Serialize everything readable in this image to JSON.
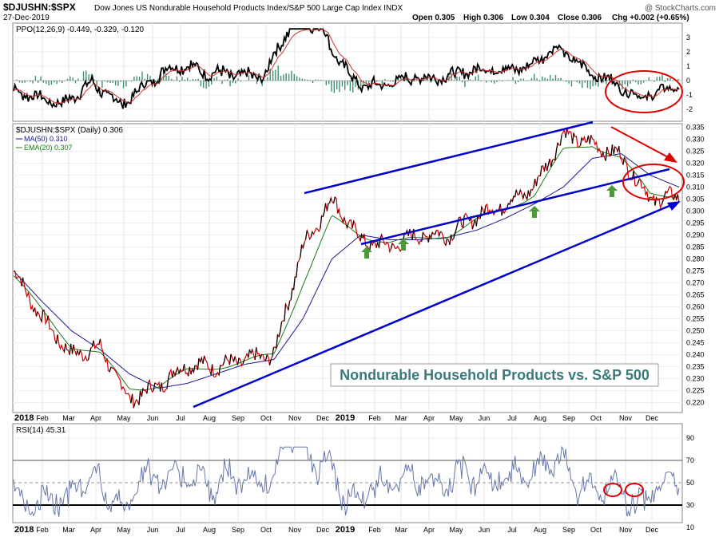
{
  "header": {
    "symbol": "$DJUSHN:$SPX",
    "description": "Dow Jones US Nondurable Household Products Index/S&P 500 Large Cap Index INDX",
    "watermark": "@ StockCharts.com",
    "date": "27-Dec-2019",
    "open": "Open 0.305",
    "high": "High 0.306",
    "low": "Low 0.304",
    "close": "Close 0.306",
    "chg": "Chg +0.002 (+0.65%)"
  },
  "ppo_panel": {
    "label": "PPO(12,26,9) -0.449, -0.329, -0.120",
    "ticks": [
      "3",
      "2",
      "1",
      "0",
      "-1",
      "-2"
    ]
  },
  "price_panel": {
    "label": "$DJUSHN:$SPX (Daily) 0.306",
    "ma_label": "MA(50) 0.310",
    "ema_label": "EMA(20) 0.307",
    "annotation": "Nondurable Household Products vs. S&P 500",
    "ticks": [
      "0.335",
      "0.330",
      "0.325",
      "0.320",
      "0.315",
      "0.310",
      "0.305",
      "0.300",
      "0.295",
      "0.290",
      "0.285",
      "0.280",
      "0.275",
      "0.270",
      "0.265",
      "0.260",
      "0.255",
      "0.250",
      "0.245",
      "0.240",
      "0.235",
      "0.230",
      "0.225",
      "0.220"
    ]
  },
  "rsi_panel": {
    "label": "RSI(14) 45.31",
    "ticks": [
      "90",
      "70",
      "50",
      "30",
      "10"
    ]
  },
  "x_axis": [
    "2018",
    "Feb",
    "Mar",
    "Apr",
    "May",
    "Jun",
    "Jul",
    "Aug",
    "Sep",
    "Oct",
    "Nov",
    "Dec",
    "2019",
    "Feb",
    "Mar",
    "Apr",
    "May",
    "Jun",
    "Jul",
    "Aug",
    "Sep",
    "Oct",
    "Nov",
    "Dec"
  ],
  "colors": {
    "price": "#cc0000",
    "ma50": "#1a1a8c",
    "ema20": "#1a7a1a",
    "trendline": "#0000cc",
    "arrow_green": "#4a9a3a",
    "highlight": "#dd0000",
    "rsi": "#6677aa"
  },
  "chart_data": {
    "type": "line",
    "title": "$DJUSHN:$SPX",
    "ylim": [
      0.218,
      0.337
    ],
    "x": [
      "2018-01",
      "2018-02",
      "2018-03",
      "2018-04",
      "2018-05",
      "2018-06",
      "2018-07",
      "2018-08",
      "2018-09",
      "2018-10",
      "2018-11",
      "2018-12",
      "2019-01",
      "2019-02",
      "2019-03",
      "2019-04",
      "2019-05",
      "2019-06",
      "2019-07",
      "2019-08",
      "2019-09",
      "2019-10",
      "2019-11",
      "2019-12"
    ],
    "series": [
      {
        "name": "$DJUSHN:$SPX (Daily)",
        "values": [
          0.275,
          0.255,
          0.24,
          0.243,
          0.221,
          0.227,
          0.236,
          0.235,
          0.238,
          0.24,
          0.285,
          0.305,
          0.288,
          0.285,
          0.29,
          0.29,
          0.298,
          0.303,
          0.31,
          0.332,
          0.328,
          0.323,
          0.305,
          0.306
        ]
      },
      {
        "name": "MA(50)",
        "values": [
          0.275,
          0.262,
          0.25,
          0.242,
          0.232,
          0.226,
          0.228,
          0.232,
          0.236,
          0.238,
          0.255,
          0.28,
          0.29,
          0.288,
          0.288,
          0.289,
          0.292,
          0.297,
          0.303,
          0.31,
          0.322,
          0.324,
          0.315,
          0.31
        ]
      },
      {
        "name": "EMA(20)",
        "values": [
          0.273,
          0.258,
          0.244,
          0.24,
          0.226,
          0.227,
          0.233,
          0.235,
          0.237,
          0.24,
          0.27,
          0.297,
          0.29,
          0.287,
          0.288,
          0.29,
          0.296,
          0.301,
          0.307,
          0.325,
          0.328,
          0.322,
          0.307,
          0.307
        ]
      }
    ],
    "rsi": {
      "name": "RSI(14)",
      "last": 45.31,
      "levels": [
        30,
        70
      ]
    },
    "ppo": {
      "name": "PPO(12,26,9)",
      "values": [
        -0.449,
        -0.329,
        -0.12
      ]
    }
  }
}
